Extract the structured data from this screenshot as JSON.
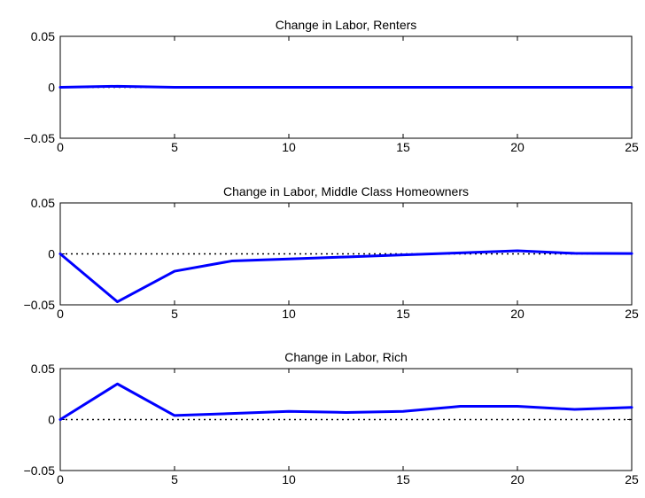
{
  "chart_data": [
    {
      "type": "line",
      "title": "Change in Labor, Renters",
      "xlim": [
        0,
        25
      ],
      "ylim": [
        -0.05,
        0.05
      ],
      "xticks": [
        0,
        5,
        10,
        15,
        20,
        25
      ],
      "yticks": [
        0.05,
        0,
        -0.05
      ],
      "xtick_labels": [
        "0",
        "5",
        "10",
        "15",
        "20",
        "25"
      ],
      "ytick_labels": [
        "0.05",
        "0",
        "−0.05"
      ],
      "reference_line": {
        "y": 0,
        "style": "dotted",
        "color": "#000000"
      },
      "series": [
        {
          "color": "#0000ff",
          "x": [
            0,
            2.5,
            5,
            7.5,
            10,
            12.5,
            15,
            17.5,
            20,
            22.5,
            25
          ],
          "y": [
            0,
            0.001,
            0,
            0,
            0,
            0,
            0,
            0,
            0,
            0,
            0
          ]
        }
      ]
    },
    {
      "type": "line",
      "title": "Change in Labor, Middle Class Homeowners",
      "xlim": [
        0,
        25
      ],
      "ylim": [
        -0.05,
        0.05
      ],
      "xticks": [
        0,
        5,
        10,
        15,
        20,
        25
      ],
      "yticks": [
        0.05,
        0,
        -0.05
      ],
      "xtick_labels": [
        "0",
        "5",
        "10",
        "15",
        "20",
        "25"
      ],
      "ytick_labels": [
        "0.05",
        "0",
        "−0.05"
      ],
      "reference_line": {
        "y": 0,
        "style": "dotted",
        "color": "#000000"
      },
      "series": [
        {
          "color": "#0000ff",
          "x": [
            0,
            2.5,
            5,
            7.5,
            10,
            12.5,
            15,
            17.5,
            20,
            22.5,
            25
          ],
          "y": [
            0,
            -0.047,
            -0.017,
            -0.007,
            -0.005,
            -0.003,
            -0.001,
            0.001,
            0.003,
            0.0005,
            0.0003
          ]
        }
      ]
    },
    {
      "type": "line",
      "title": "Change in Labor, Rich",
      "xlim": [
        0,
        25
      ],
      "ylim": [
        -0.05,
        0.05
      ],
      "xticks": [
        0,
        5,
        10,
        15,
        20,
        25
      ],
      "yticks": [
        0.05,
        0,
        -0.05
      ],
      "xtick_labels": [
        "0",
        "5",
        "10",
        "15",
        "20",
        "25"
      ],
      "ytick_labels": [
        "0.05",
        "0",
        "−0.05"
      ],
      "reference_line": {
        "y": 0,
        "style": "dotted",
        "color": "#000000"
      },
      "series": [
        {
          "color": "#0000ff",
          "x": [
            0,
            2.5,
            5,
            7.5,
            10,
            12.5,
            15,
            17.5,
            20,
            22.5,
            25
          ],
          "y": [
            0,
            0.035,
            0.004,
            0.006,
            0.008,
            0.007,
            0.008,
            0.013,
            0.013,
            0.01,
            0.012
          ]
        }
      ]
    }
  ]
}
